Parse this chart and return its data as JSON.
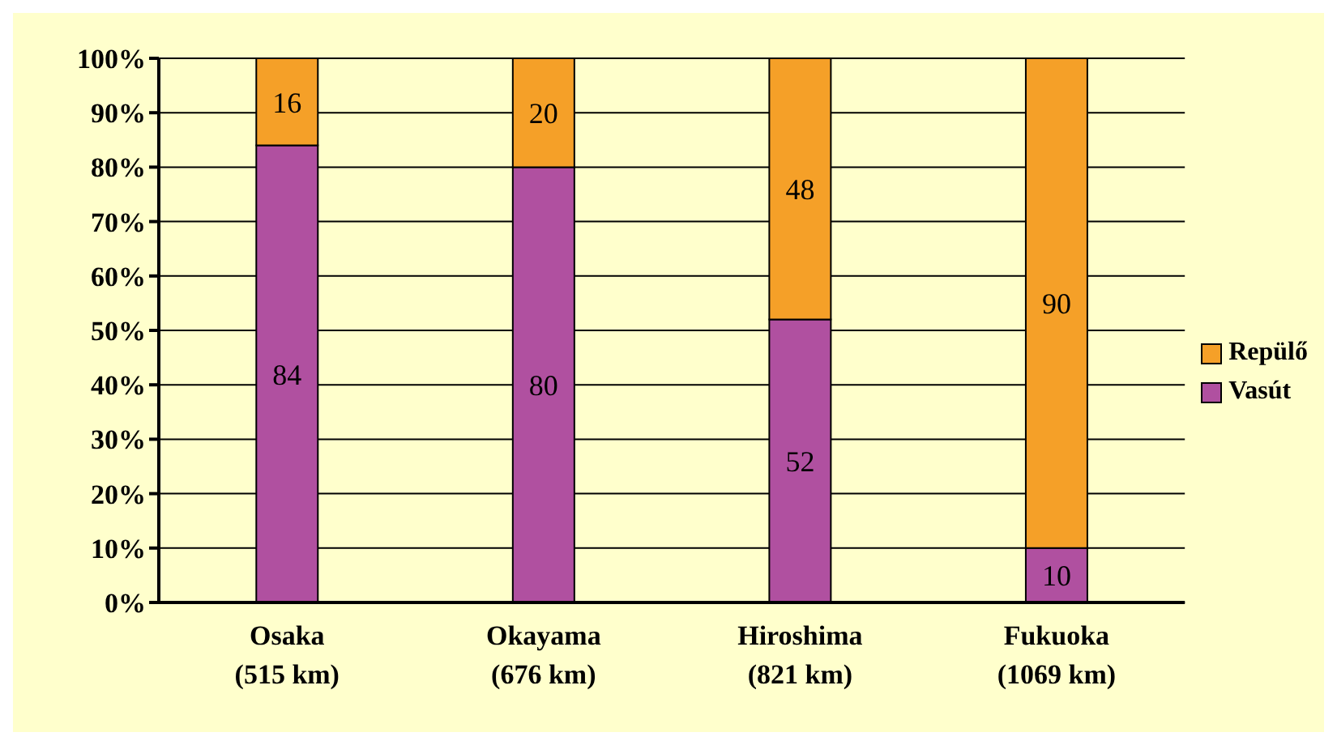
{
  "chart_data": {
    "type": "bar",
    "stacked": true,
    "categories": [
      "Osaka\n(515 km)",
      "Okayama\n(676 km)",
      "Hiroshima\n(821 km)",
      "Fukuoka\n(1069 km)"
    ],
    "series": [
      {
        "name": "Vasút",
        "color": "#b050a0",
        "values": [
          84,
          80,
          52,
          10
        ]
      },
      {
        "name": "Repülő",
        "color": "#f5a028",
        "values": [
          16,
          20,
          48,
          90
        ]
      }
    ],
    "ylim": [
      0,
      100
    ],
    "yticks": [
      {
        "value": 0,
        "label": "0%"
      },
      {
        "value": 10,
        "label": "10%"
      },
      {
        "value": 20,
        "label": "20%"
      },
      {
        "value": 30,
        "label": "30%"
      },
      {
        "value": 40,
        "label": "40%"
      },
      {
        "value": 50,
        "label": "50%"
      },
      {
        "value": 60,
        "label": "60%"
      },
      {
        "value": 70,
        "label": "70%"
      },
      {
        "value": 80,
        "label": "80%"
      },
      {
        "value": 90,
        "label": "90%"
      },
      {
        "value": 100,
        "label": "100%"
      }
    ],
    "grid": "y",
    "legend": "right",
    "data_labels": true
  }
}
